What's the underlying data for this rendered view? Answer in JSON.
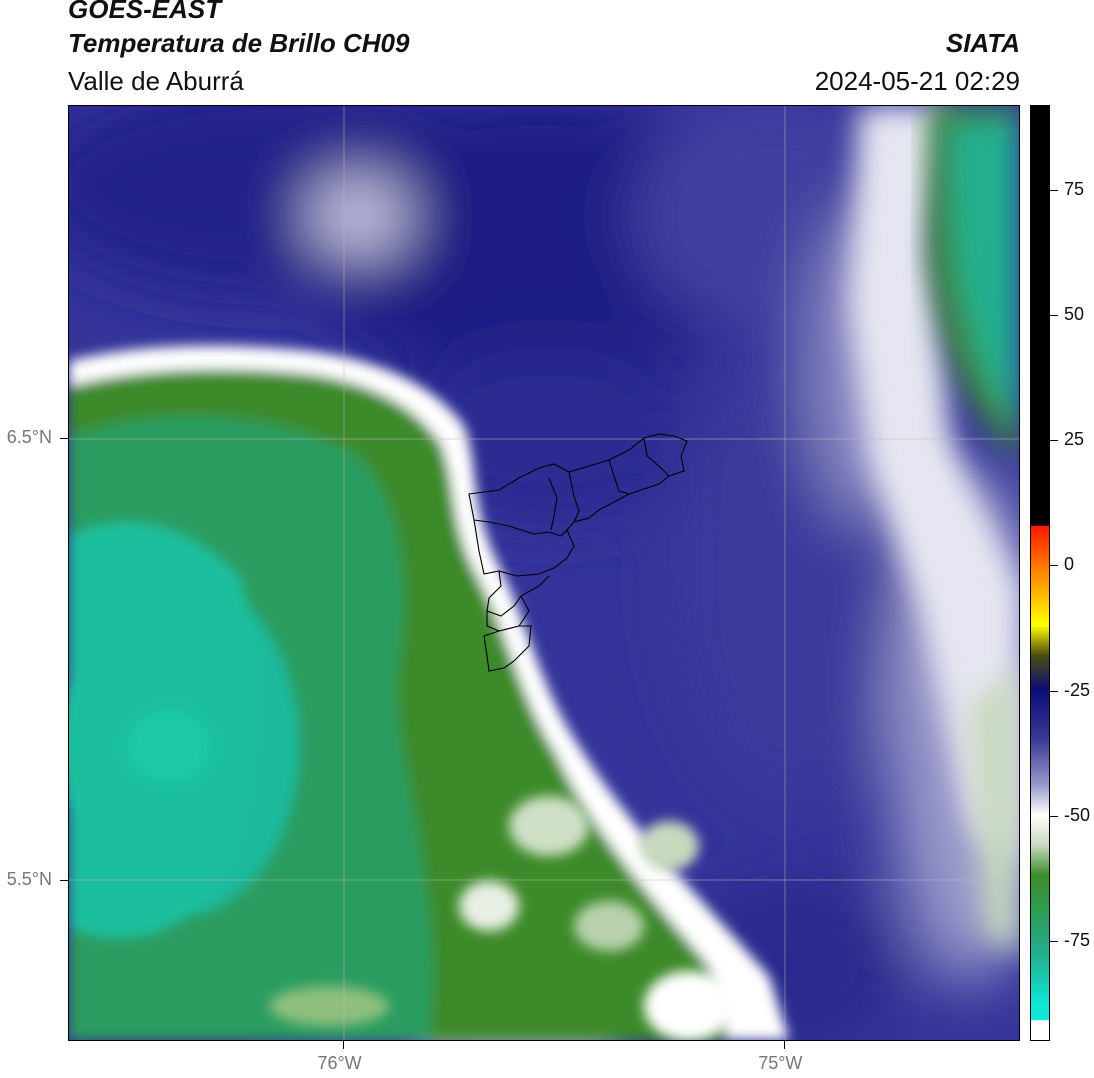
{
  "header": {
    "satellite": "GOES-EAST",
    "product": "Temperatura de Brillo CH09",
    "region": "Valle de Aburrá",
    "agency": "SIATA",
    "datetime": "2024-05-21 02:29"
  },
  "axes": {
    "lat_labels": [
      {
        "text": "6.5°N",
        "value": 6.5
      },
      {
        "text": "5.5°N",
        "value": 5.5
      }
    ],
    "lon_labels": [
      {
        "text": "76°W",
        "value": -76.0
      },
      {
        "text": "75°W",
        "value": -75.0
      }
    ]
  },
  "colorbar": {
    "ticks": [
      {
        "text": "75",
        "value": 75
      },
      {
        "text": "50",
        "value": 50
      },
      {
        "text": "25",
        "value": 25
      },
      {
        "text": "0",
        "value": 0
      },
      {
        "text": "-25",
        "value": -25
      },
      {
        "text": "-50",
        "value": -50
      },
      {
        "text": "-75",
        "value": -75
      }
    ],
    "colors": {
      "cyan": "#11e6d6",
      "teal": "#21b08f",
      "green": "#3e8a2b",
      "light_green": "#c8d9bf",
      "white": "#ffffff",
      "lavender": "#9a9acb",
      "blue": "#3c3c97",
      "navy": "#0c0c78",
      "dark_olive": "#4c4c10",
      "yellow": "#ffff00",
      "orange": "#ff8c00",
      "red": "#ff1a00",
      "black": "#000000"
    }
  }
}
